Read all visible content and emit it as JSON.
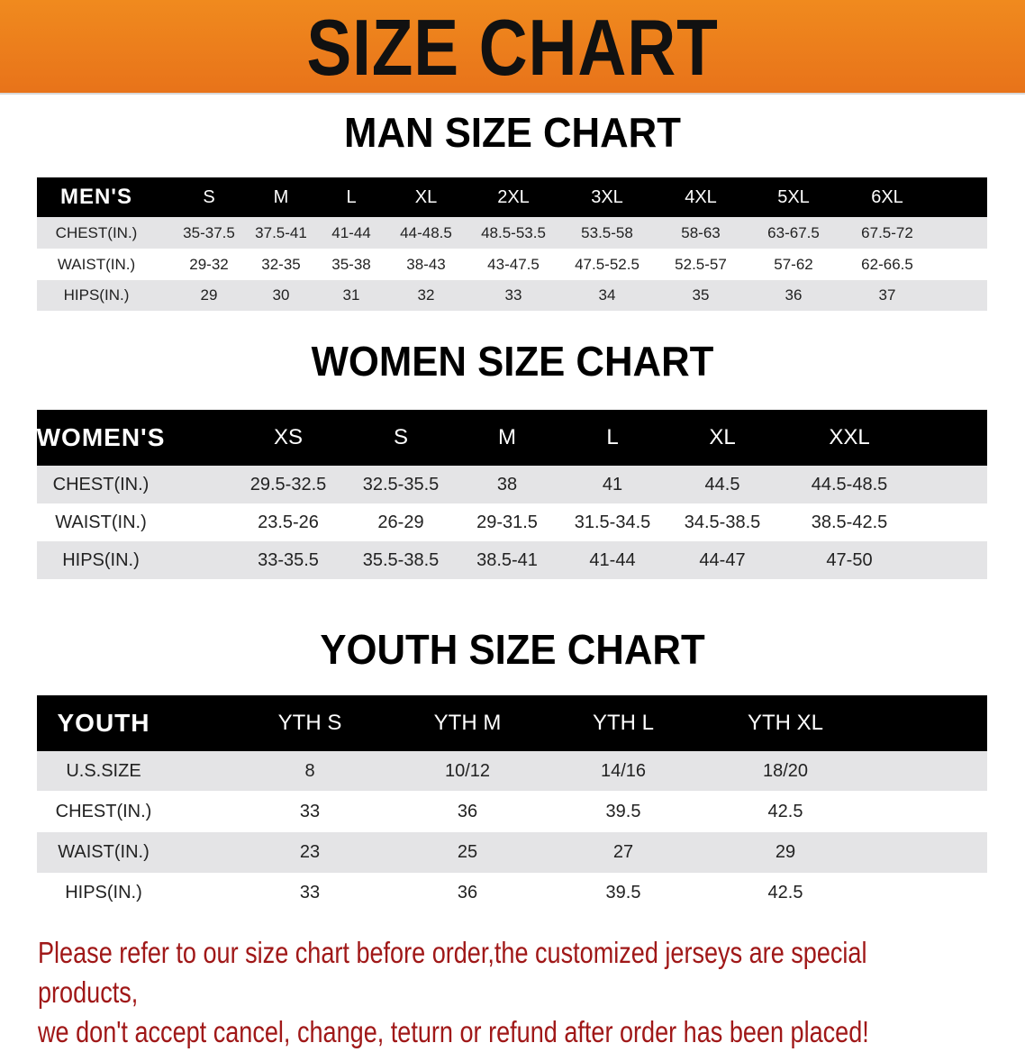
{
  "banner": {
    "title": "SIZE CHART",
    "color": "#ee7d1c"
  },
  "men": {
    "title": "MAN SIZE CHART",
    "header": [
      "MEN'S",
      "S",
      "M",
      "L",
      "XL",
      "2XL",
      "3XL",
      "4XL",
      "5XL",
      "6XL"
    ],
    "rows": [
      [
        "CHEST(IN.)",
        "35-37.5",
        "37.5-41",
        "41-44",
        "44-48.5",
        "48.5-53.5",
        "53.5-58",
        "58-63",
        "63-67.5",
        "67.5-72"
      ],
      [
        "WAIST(IN.)",
        "29-32",
        "32-35",
        "35-38",
        "38-43",
        "43-47.5",
        "47.5-52.5",
        "52.5-57",
        "57-62",
        "62-66.5"
      ],
      [
        "HIPS(IN.)",
        "29",
        "30",
        "31",
        "32",
        "33",
        "34",
        "35",
        "36",
        "37"
      ]
    ]
  },
  "women": {
    "title": "WOMEN SIZE CHART",
    "header": [
      "WOMEN'S",
      "XS",
      "S",
      "M",
      "L",
      "XL",
      "XXL"
    ],
    "rows": [
      [
        "CHEST(IN.)",
        "29.5-32.5",
        "32.5-35.5",
        "38",
        "41",
        "44.5",
        "44.5-48.5"
      ],
      [
        "WAIST(IN.)",
        "23.5-26",
        "26-29",
        "29-31.5",
        "31.5-34.5",
        "34.5-38.5",
        "38.5-42.5"
      ],
      [
        "HIPS(IN.)",
        "33-35.5",
        "35.5-38.5",
        "38.5-41",
        "41-44",
        "44-47",
        "47-50"
      ]
    ]
  },
  "youth": {
    "title": "YOUTH SIZE CHART",
    "header": [
      "YOUTH",
      "YTH S",
      "YTH M",
      "YTH L",
      "YTH XL"
    ],
    "rows": [
      [
        "U.S.SIZE",
        "8",
        "10/12",
        "14/16",
        "18/20"
      ],
      [
        "CHEST(IN.)",
        "33",
        "36",
        "39.5",
        "42.5"
      ],
      [
        "WAIST(IN.)",
        "23",
        "25",
        "27",
        "29"
      ],
      [
        "HIPS(IN.)",
        "33",
        "36",
        "39.5",
        "42.5"
      ]
    ]
  },
  "notice": {
    "line1": "Please refer to our size chart before order,the customized jerseys are special products,",
    "line2": "we don't accept cancel, change, teturn or refund after order has been placed!",
    "color": "#a01818"
  }
}
